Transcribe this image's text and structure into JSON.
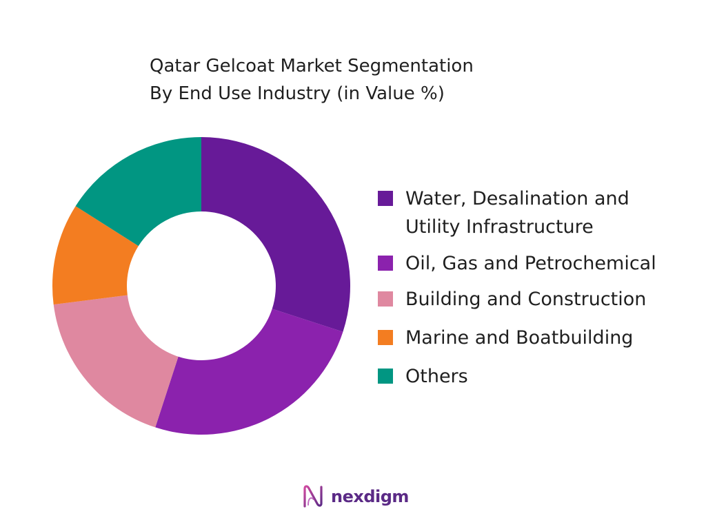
{
  "chart_data": {
    "type": "pie",
    "variant": "donut",
    "title": "Qatar Gelcoat Market Segmentation",
    "subtitle": "By End Use Industry (in Value %)",
    "categories": [
      "Water, Desalination and\nUtility Infrastructure",
      "Oil, Gas and Petrochemical",
      "Building and Construction",
      "Marine and Boatbuilding",
      "Others"
    ],
    "values": [
      30,
      25,
      18,
      11,
      16
    ],
    "colors": [
      "#671a98",
      "#8b22ad",
      "#df88a0",
      "#f37d21",
      "#019682"
    ],
    "legend_position": "right"
  },
  "brand": {
    "name": "nexdigm"
  }
}
